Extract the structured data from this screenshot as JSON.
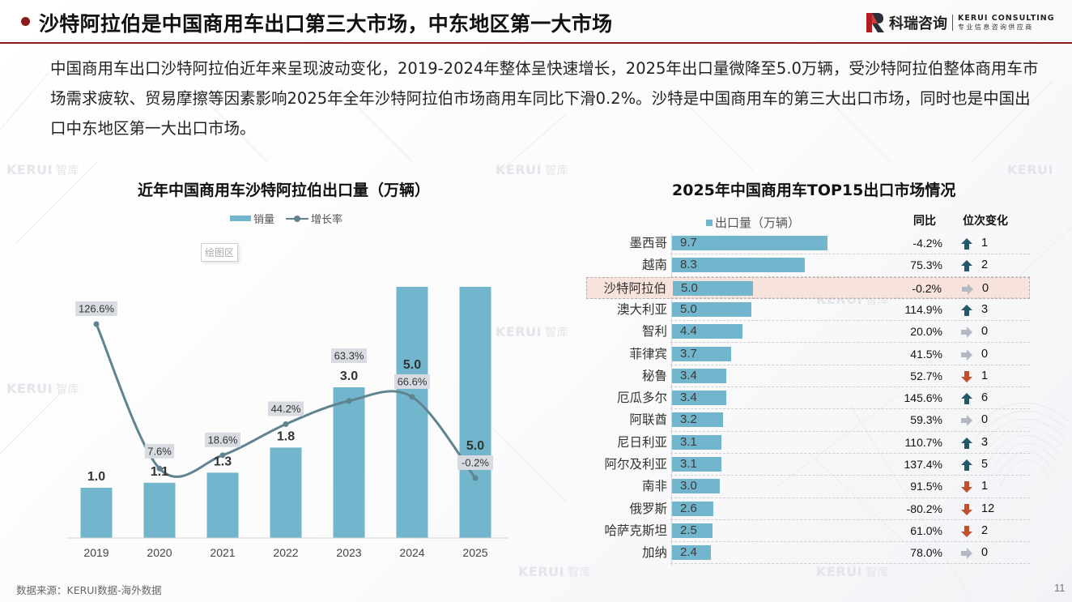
{
  "header": {
    "title": "沙特阿拉伯是中国商用车出口第三大市场，中东地区第一大市场",
    "logo_name": "科瑞咨询",
    "logo_en": "KERUI CONSULTING",
    "logo_sub": "专业信息咨询供应商",
    "accent_color": "#8b1a1a"
  },
  "summary": "中国商用车出口沙特阿拉伯近年来呈现波动变化，2019-2024年整体呈快速增长，2025年出口量微降至5.0万辆，受沙特阿拉伯整体商用车市场需求疲软、贸易摩擦等因素影响2025年全年沙特阿拉伯市场商用车同比下滑0.2%。沙特是中国商用车的第三大出口市场，同时也是中国出口中东地区第一大出口市场。",
  "watermark": {
    "brand": "KERUI",
    "zh": "智库"
  },
  "plot_area_tag": "绘图区",
  "footer": {
    "source": "数据来源：KERUI数据-海外数据",
    "page": "11"
  },
  "chart_data": [
    {
      "type": "bar",
      "title": "近年中国商用车沙特阿拉伯出口量（万辆）",
      "legend": [
        "销量",
        "增长率"
      ],
      "legend_position": "top",
      "categories": [
        "2019",
        "2020",
        "2021",
        "2022",
        "2023",
        "2024",
        "2025"
      ],
      "series": [
        {
          "name": "销量",
          "type": "bar",
          "values": [
            1.0,
            1.1,
            1.3,
            1.8,
            3.0,
            5.0,
            5.0
          ],
          "labels": [
            "1.0",
            "1.1",
            "1.3",
            "1.8",
            "3.0",
            "5.0",
            "5.0"
          ],
          "color": "#71b6cd"
        },
        {
          "name": "增长率",
          "type": "line",
          "smooth": true,
          "values": [
            126.6,
            7.6,
            18.6,
            44.2,
            63.3,
            66.6,
            -0.2
          ],
          "labels": [
            "126.6%",
            "7.6%",
            "18.6%",
            "44.2%",
            "63.3%",
            "66.6%",
            "-0.2%"
          ],
          "color": "#5f8490"
        }
      ],
      "grid": false
    },
    {
      "type": "bar",
      "orientation": "horizontal",
      "title": "2025年中国商用车TOP15出口市场情况",
      "legend": [
        "出口量（万辆）"
      ],
      "columns": {
        "yoy": "同比",
        "rank_change": "位次变化"
      },
      "highlight": "沙特阿拉伯",
      "rows": [
        {
          "name": "墨西哥",
          "value": 9.7,
          "label": "9.7",
          "yoy": "-4.2%",
          "dir": "up",
          "rank": "1"
        },
        {
          "name": "越南",
          "value": 8.3,
          "label": "8.3",
          "yoy": "75.3%",
          "dir": "up",
          "rank": "2"
        },
        {
          "name": "沙特阿拉伯",
          "value": 5.0,
          "label": "5.0",
          "yoy": "-0.2%",
          "dir": "flat",
          "rank": "0"
        },
        {
          "name": "澳大利亚",
          "value": 4.95,
          "label": "5.0",
          "yoy": "114.9%",
          "dir": "up",
          "rank": "3"
        },
        {
          "name": "智利",
          "value": 4.4,
          "label": "4.4",
          "yoy": "20.0%",
          "dir": "flat",
          "rank": "0"
        },
        {
          "name": "菲律宾",
          "value": 3.7,
          "label": "3.7",
          "yoy": "41.5%",
          "dir": "flat",
          "rank": "0"
        },
        {
          "name": "秘鲁",
          "value": 3.4,
          "label": "3.4",
          "yoy": "52.7%",
          "dir": "down",
          "rank": "1"
        },
        {
          "name": "厄瓜多尔",
          "value": 3.4,
          "label": "3.4",
          "yoy": "145.6%",
          "dir": "up",
          "rank": "6"
        },
        {
          "name": "阿联酋",
          "value": 3.2,
          "label": "3.2",
          "yoy": "59.3%",
          "dir": "flat",
          "rank": "0"
        },
        {
          "name": "尼日利亚",
          "value": 3.1,
          "label": "3.1",
          "yoy": "110.7%",
          "dir": "up",
          "rank": "3"
        },
        {
          "name": "阿尔及利亚",
          "value": 3.1,
          "label": "3.1",
          "yoy": "137.4%",
          "dir": "up",
          "rank": "5"
        },
        {
          "name": "南非",
          "value": 3.0,
          "label": "3.0",
          "yoy": "91.5%",
          "dir": "down",
          "rank": "1"
        },
        {
          "name": "俄罗斯",
          "value": 2.6,
          "label": "2.6",
          "yoy": "-80.2%",
          "dir": "down",
          "rank": "12"
        },
        {
          "name": "哈萨克斯坦",
          "value": 2.5,
          "label": "2.5",
          "yoy": "61.0%",
          "dir": "down",
          "rank": "2"
        },
        {
          "name": "加纳",
          "value": 2.4,
          "label": "2.4",
          "yoy": "78.0%",
          "dir": "flat",
          "rank": "0"
        }
      ],
      "colors": {
        "bar": "#71b6cd",
        "up": "#245869",
        "down": "#c0502b",
        "flat": "#b3b9c2",
        "highlight": "#f8e2dc"
      }
    }
  ]
}
